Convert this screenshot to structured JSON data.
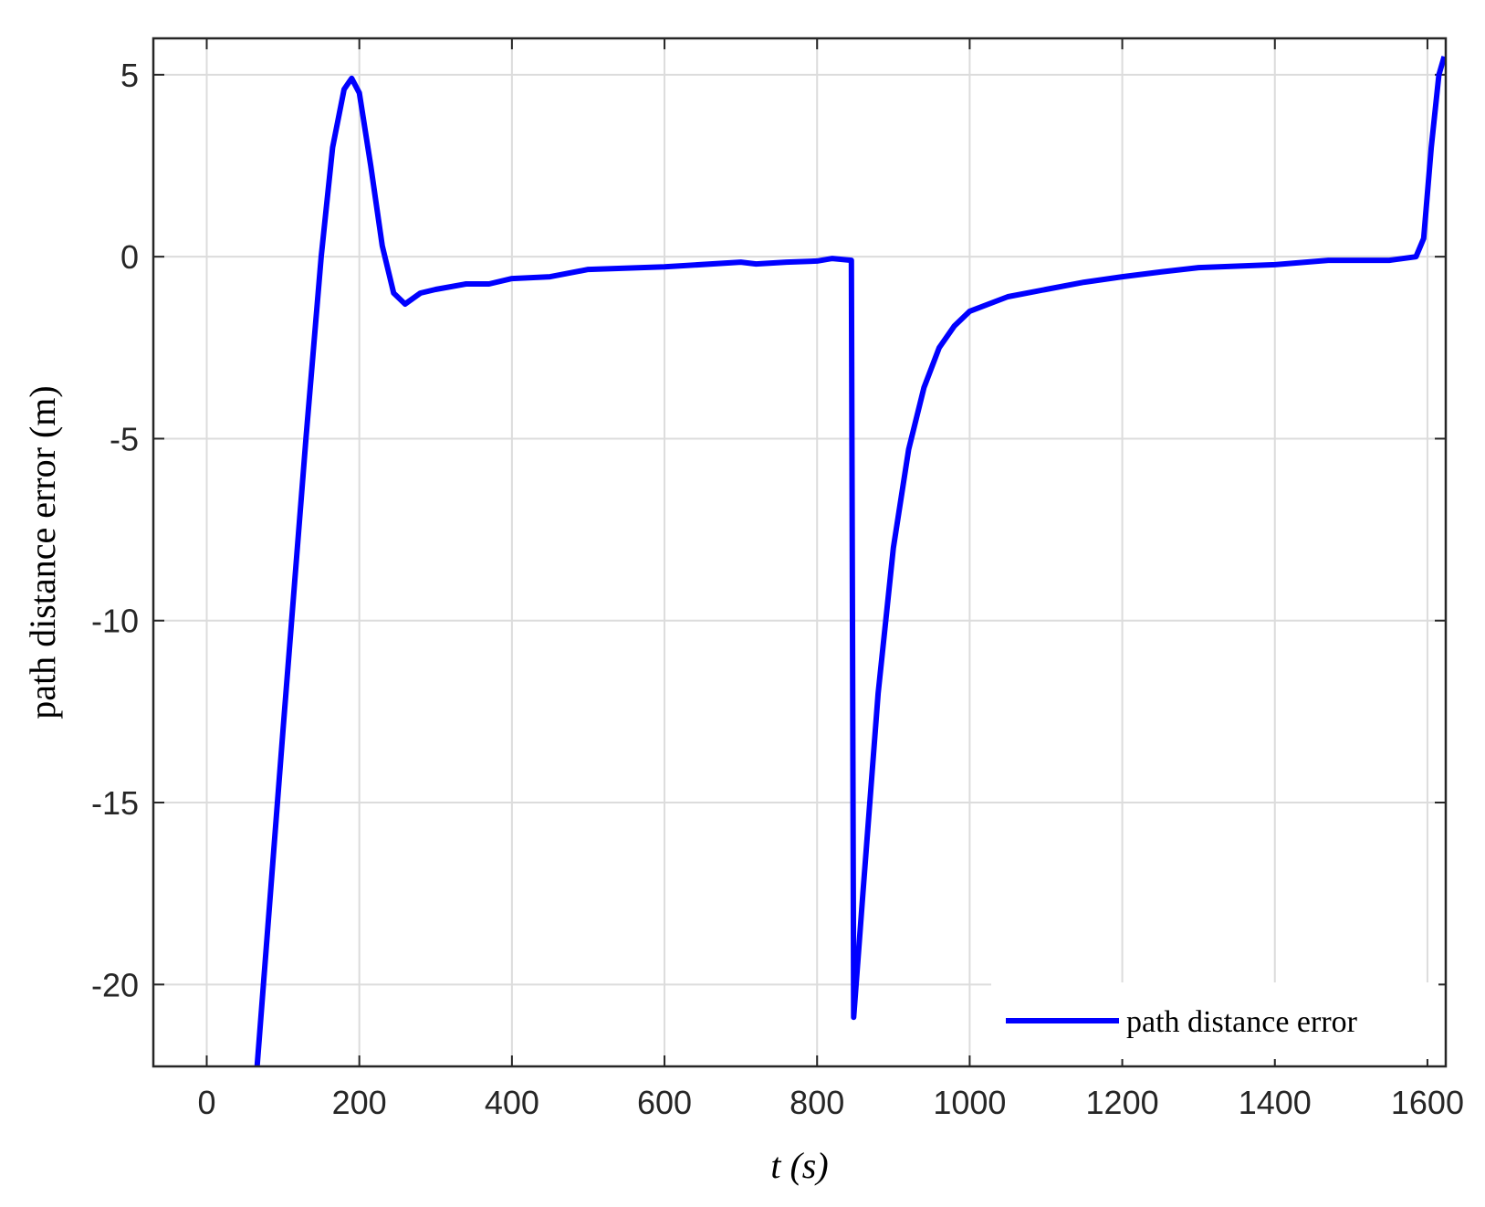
{
  "chart_data": {
    "type": "line",
    "xlabel": "t (s)",
    "ylabel": "path distance error (m)",
    "xlim": [
      -70,
      1624
    ],
    "ylim": [
      -22.25,
      6
    ],
    "xticks": [
      0,
      200,
      400,
      600,
      800,
      1000,
      1200,
      1400,
      1600
    ],
    "yticks": [
      -20,
      -15,
      -10,
      -5,
      0,
      5
    ],
    "grid": true,
    "legend": "lower right",
    "x": [
      66,
      100,
      130,
      150,
      165,
      180,
      190,
      200,
      215,
      230,
      245,
      260,
      280,
      300,
      340,
      370,
      400,
      450,
      500,
      600,
      700,
      720,
      760,
      800,
      820,
      845,
      848,
      860,
      880,
      900,
      920,
      940,
      960,
      980,
      1000,
      1050,
      1100,
      1150,
      1200,
      1250,
      1300,
      1400,
      1470,
      1550,
      1585,
      1595,
      1605,
      1615,
      1622
    ],
    "series": [
      {
        "name": "path distance error",
        "color": "#0000ff",
        "values": [
          -22.25,
          -13,
          -5,
          0,
          3,
          4.6,
          4.9,
          4.5,
          2.5,
          0.3,
          -1,
          -1.3,
          -1.0,
          -0.9,
          -0.75,
          -0.75,
          -0.6,
          -0.55,
          -0.35,
          -0.28,
          -0.15,
          -0.2,
          -0.15,
          -0.12,
          -0.05,
          -0.1,
          -20.9,
          -17.5,
          -12,
          -8,
          -5.3,
          -3.6,
          -2.5,
          -1.9,
          -1.5,
          -1.1,
          -0.9,
          -0.7,
          -0.55,
          -0.42,
          -0.3,
          -0.22,
          -0.1,
          -0.1,
          0,
          0.5,
          3,
          5,
          5.5
        ]
      }
    ]
  }
}
